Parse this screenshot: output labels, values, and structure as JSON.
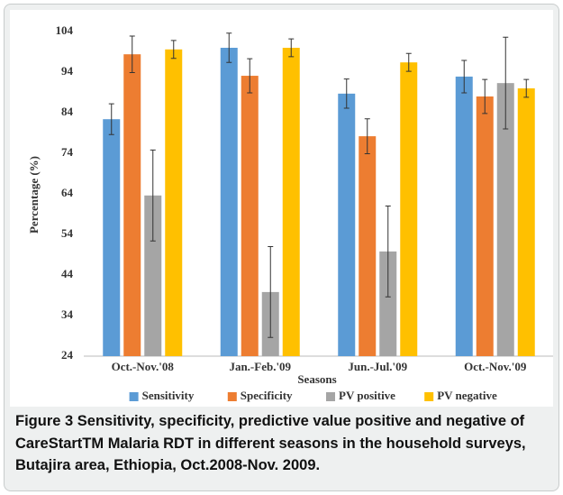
{
  "chart_data": {
    "type": "bar",
    "y_label": "Percentage (%)",
    "x_label": "Seasons",
    "categories": [
      "Oct.-Nov.'08",
      "Jan.-Feb.'09",
      "Jun.-Jul.'09",
      "Oct.-Nov.'09"
    ],
    "series": [
      {
        "name": "Sensitivity",
        "color": "#5b9bd5",
        "values": [
          82.4,
          100,
          88.7,
          92.9
        ],
        "errors": [
          3.8,
          3.6,
          3.6,
          4.0
        ]
      },
      {
        "name": "Specificity",
        "color": "#ed7d31",
        "values": [
          98.4,
          93.1,
          78.2,
          88.0
        ],
        "errors": [
          4.5,
          4.2,
          4.3,
          4.2
        ]
      },
      {
        "name": "PV positive",
        "color": "#a5a5a5",
        "values": [
          63.6,
          39.8,
          49.8,
          91.3
        ],
        "errors": [
          11.2,
          11.2,
          11.2,
          11.3
        ]
      },
      {
        "name": "PV negative",
        "color": "#ffc000",
        "values": [
          99.6,
          100,
          96.4,
          90.0
        ],
        "errors": [
          2.2,
          2.2,
          2.2,
          2.2
        ]
      }
    ],
    "ylim": [
      24,
      104
    ],
    "yticks": [
      24,
      34,
      44,
      54,
      64,
      74,
      84,
      94,
      104
    ],
    "legend": "bottom"
  },
  "caption": {
    "label": "Figure 3",
    "text": "Sensitivity, specificity, predictive value positive and negative of CareStartTM Malaria RDT in different seasons in the household surveys, Butajira area, Ethiopia, Oct.2008-Nov. 2009."
  }
}
